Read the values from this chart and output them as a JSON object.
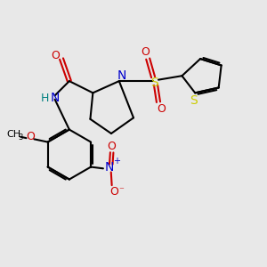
{
  "bg_color": "#e8e8e8",
  "bond_color": "#000000",
  "N_color": "#0000cc",
  "O_color": "#cc0000",
  "S_color": "#cccc00",
  "H_color": "#008080",
  "line_width": 1.5,
  "figsize": [
    3.0,
    3.0
  ],
  "dpi": 100,
  "xlim": [
    0,
    10
  ],
  "ylim": [
    0,
    10
  ]
}
